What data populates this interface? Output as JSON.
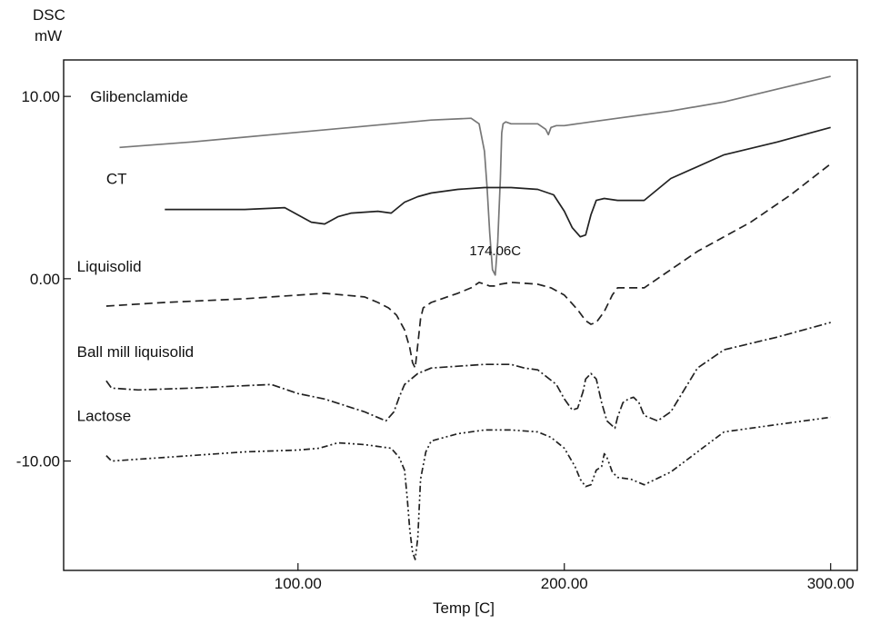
{
  "chart_data": {
    "type": "line",
    "ylabel_line1": "DSC",
    "ylabel_line2": "mW",
    "xlabel": "Temp  [C]",
    "xlim": [
      12,
      310
    ],
    "ylim": [
      -16,
      12
    ],
    "xticks": [
      {
        "value": 100,
        "label": "100.00"
      },
      {
        "value": 200,
        "label": "200.00"
      },
      {
        "value": 300,
        "label": "300.00"
      }
    ],
    "yticks": [
      {
        "value": 10,
        "label": "10.00"
      },
      {
        "value": 0,
        "label": "0.00"
      },
      {
        "value": -10,
        "label": "-10.00"
      }
    ],
    "annotation": {
      "text": "174.06C",
      "x": 174.06,
      "y": 1.3
    },
    "series": [
      {
        "name": "Glibenclamide",
        "color": "#777777",
        "dash": "solid",
        "label_pos": [
          22,
          9.7
        ],
        "x": [
          33,
          60,
          90,
          120,
          150,
          165,
          168,
          170,
          171,
          172,
          173,
          174.06,
          175,
          176,
          176.5,
          177,
          178,
          180,
          185,
          190,
          193,
          194,
          195,
          197,
          200,
          210,
          220,
          240,
          260,
          280,
          300
        ],
        "y": [
          7.2,
          7.5,
          7.9,
          8.3,
          8.7,
          8.8,
          8.5,
          7.0,
          5.0,
          2.5,
          0.5,
          0.2,
          2.0,
          5.5,
          8.0,
          8.5,
          8.6,
          8.5,
          8.5,
          8.5,
          8.2,
          7.9,
          8.3,
          8.4,
          8.4,
          8.6,
          8.8,
          9.2,
          9.7,
          10.4,
          11.1
        ]
      },
      {
        "name": "CT",
        "color": "#222222",
        "dash": "solid",
        "label_pos": [
          28,
          5.2
        ],
        "x": [
          50,
          80,
          95,
          100,
          105,
          110,
          115,
          120,
          130,
          135,
          140,
          145,
          150,
          160,
          170,
          180,
          190,
          196,
          200,
          203,
          206,
          208,
          210,
          212,
          215,
          220,
          230,
          240,
          260,
          280,
          300
        ],
        "y": [
          3.8,
          3.8,
          3.9,
          3.5,
          3.1,
          3.0,
          3.4,
          3.6,
          3.7,
          3.6,
          4.2,
          4.5,
          4.7,
          4.9,
          5.0,
          5.0,
          4.9,
          4.6,
          3.7,
          2.8,
          2.3,
          2.4,
          3.5,
          4.3,
          4.4,
          4.3,
          4.3,
          5.5,
          6.8,
          7.5,
          8.3
        ]
      },
      {
        "name": "Liquisolid",
        "color": "#222222",
        "dash": "9,5",
        "label_pos": [
          17,
          0.4
        ],
        "x": [
          28,
          50,
          80,
          110,
          125,
          130,
          134,
          137,
          140,
          142,
          143,
          144,
          145,
          146,
          147,
          150,
          160,
          165,
          168,
          170,
          172,
          174,
          176,
          180,
          190,
          195,
          200,
          205,
          208,
          210,
          212,
          215,
          218,
          220,
          230,
          250,
          270,
          285,
          300
        ],
        "y": [
          -1.5,
          -1.3,
          -1.1,
          -0.8,
          -1.0,
          -1.3,
          -1.6,
          -2.0,
          -2.8,
          -3.8,
          -4.6,
          -4.9,
          -3.6,
          -2.2,
          -1.6,
          -1.3,
          -0.8,
          -0.5,
          -0.2,
          -0.3,
          -0.4,
          -0.4,
          -0.3,
          -0.2,
          -0.3,
          -0.5,
          -0.9,
          -1.7,
          -2.3,
          -2.5,
          -2.4,
          -1.8,
          -0.9,
          -0.5,
          -0.5,
          1.5,
          3.1,
          4.6,
          6.3
        ]
      },
      {
        "name": "Ball mill liquisolid",
        "color": "#222222",
        "dash": "9,3,2,3",
        "label_pos": [
          17,
          -4.3
        ],
        "x": [
          28,
          30,
          40,
          60,
          90,
          100,
          110,
          125,
          133,
          136,
          138,
          140,
          145,
          150,
          160,
          170,
          180,
          185,
          190,
          197,
          200,
          203,
          205,
          207,
          208,
          210,
          212,
          214,
          216,
          219,
          220,
          222,
          224,
          226,
          228,
          230,
          235,
          240,
          250,
          260,
          280,
          300
        ],
        "y": [
          -5.6,
          -6.0,
          -6.1,
          -6.0,
          -5.8,
          -6.3,
          -6.6,
          -7.3,
          -7.8,
          -7.3,
          -6.5,
          -5.8,
          -5.2,
          -4.9,
          -4.8,
          -4.7,
          -4.7,
          -4.9,
          -5.0,
          -5.8,
          -6.6,
          -7.2,
          -7.1,
          -6.2,
          -5.5,
          -5.2,
          -5.5,
          -6.8,
          -7.8,
          -8.2,
          -7.6,
          -6.8,
          -6.6,
          -6.5,
          -6.8,
          -7.5,
          -7.8,
          -7.3,
          -4.9,
          -3.9,
          -3.2,
          -2.4
        ]
      },
      {
        "name": "Lactose",
        "color": "#222222",
        "dash": "7,3,2,3,2,3",
        "label_pos": [
          17,
          -7.8
        ],
        "x": [
          28,
          30,
          50,
          80,
          100,
          108,
          115,
          125,
          135,
          138,
          140,
          141,
          142,
          143,
          144,
          145,
          146,
          148,
          150,
          160,
          170,
          180,
          190,
          195,
          200,
          204,
          206,
          208,
          210,
          212,
          214,
          215,
          216,
          217,
          218,
          220,
          225,
          230,
          240,
          250,
          260,
          280,
          300
        ],
        "y": [
          -9.7,
          -10.0,
          -9.8,
          -9.5,
          -9.4,
          -9.3,
          -9.0,
          -9.1,
          -9.3,
          -9.8,
          -10.5,
          -12.0,
          -13.8,
          -15.0,
          -15.4,
          -14.2,
          -11.0,
          -9.5,
          -8.9,
          -8.5,
          -8.3,
          -8.3,
          -8.4,
          -8.7,
          -9.3,
          -10.3,
          -11.0,
          -11.4,
          -11.3,
          -10.5,
          -10.3,
          -9.6,
          -9.8,
          -10.2,
          -10.6,
          -10.9,
          -11.0,
          -11.3,
          -10.6,
          -9.5,
          -8.4,
          -8.0,
          -7.6
        ]
      }
    ]
  }
}
